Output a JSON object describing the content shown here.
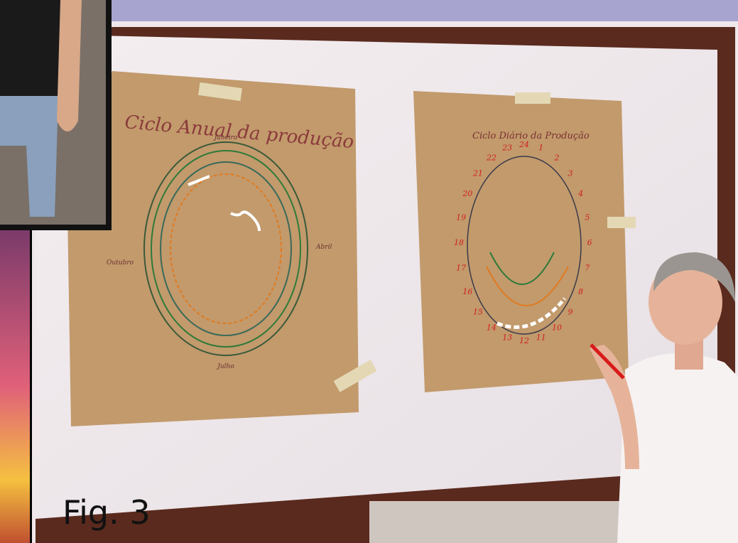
{
  "caption": "Fig. 3",
  "posters": [
    {
      "title": "Ciclo Anual da produção",
      "labels": [
        "Janeiro",
        "Abril",
        "Julho",
        "Outubro"
      ]
    },
    {
      "title": "Ciclo Diário da Produção",
      "labels": [
        "24",
        "1",
        "2",
        "3",
        "4",
        "5",
        "6",
        "7",
        "8",
        "9",
        "10",
        "11",
        "12",
        "13",
        "14",
        "15",
        "16",
        "17",
        "18",
        "19",
        "20",
        "21",
        "22",
        "23"
      ]
    }
  ]
}
